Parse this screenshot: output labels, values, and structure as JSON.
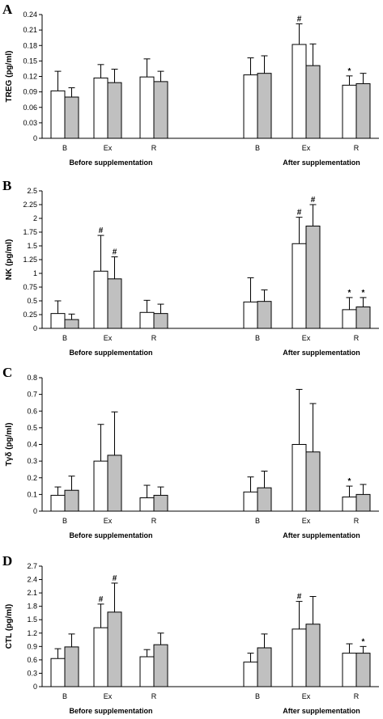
{
  "colors": {
    "series_a": "#ffffff",
    "series_b": "#c0c0c0",
    "axis": "#000000"
  },
  "chart_data": [
    {
      "panel": "A",
      "type": "bar",
      "ylabel": "TREG (pg/ml)",
      "ylim": [
        0,
        0.24
      ],
      "yticks": [
        "0",
        "0.03",
        "0.06",
        "0.09",
        "0.12",
        "0.15",
        "0.18",
        "0.21",
        "0.24"
      ],
      "categories": [
        "B",
        "Ex",
        "R",
        "B",
        "Ex",
        "R"
      ],
      "groups": [
        "Before supplementation",
        "After supplementation"
      ],
      "series": [
        {
          "values": [
            0.092,
            0.117,
            0.119,
            0.123,
            0.182,
            0.103
          ],
          "errors": [
            0.038,
            0.026,
            0.035,
            0.033,
            0.04,
            0.018
          ],
          "marks": [
            "",
            "",
            "",
            "",
            "#",
            "*"
          ]
        },
        {
          "values": [
            0.08,
            0.108,
            0.11,
            0.126,
            0.141,
            0.106
          ],
          "errors": [
            0.018,
            0.026,
            0.02,
            0.034,
            0.042,
            0.02
          ],
          "marks": [
            "",
            "",
            "",
            "",
            "",
            ""
          ]
        }
      ]
    },
    {
      "panel": "B",
      "type": "bar",
      "ylabel": "NK (pg/ml)",
      "ylim": [
        0,
        2.5
      ],
      "yticks": [
        "0",
        "0.25",
        "0.5",
        "0.75",
        "1",
        "1.25",
        "1.5",
        "1.75",
        "2",
        "2.25",
        "2.5"
      ],
      "categories": [
        "B",
        "Ex",
        "R",
        "B",
        "Ex",
        "R"
      ],
      "groups": [
        "Before supplementation",
        "After supplementation"
      ],
      "series": [
        {
          "values": [
            0.27,
            1.04,
            0.29,
            0.48,
            1.54,
            0.34
          ],
          "errors": [
            0.23,
            0.65,
            0.22,
            0.44,
            0.48,
            0.22
          ],
          "marks": [
            "",
            "#",
            "",
            "",
            "#",
            "*"
          ]
        },
        {
          "values": [
            0.16,
            0.9,
            0.27,
            0.49,
            1.86,
            0.39
          ],
          "errors": [
            0.1,
            0.4,
            0.17,
            0.21,
            0.39,
            0.17
          ],
          "marks": [
            "",
            "#",
            "",
            "",
            "#",
            "*"
          ]
        }
      ]
    },
    {
      "panel": "C",
      "type": "bar",
      "ylabel": "Tγδ (pg/ml)",
      "ylim": [
        0,
        0.8
      ],
      "yticks": [
        "0",
        "0.1",
        "0.2",
        "0.3",
        "0.4",
        "0.5",
        "0.6",
        "0.7",
        "0.8"
      ],
      "categories": [
        "B",
        "Ex",
        "R",
        "B",
        "Ex",
        "R"
      ],
      "groups": [
        "Before supplementation",
        "After supplementation"
      ],
      "series": [
        {
          "values": [
            0.095,
            0.3,
            0.08,
            0.115,
            0.4,
            0.085
          ],
          "errors": [
            0.05,
            0.22,
            0.075,
            0.09,
            0.33,
            0.065
          ],
          "marks": [
            "",
            "",
            "",
            "",
            "",
            "*"
          ]
        },
        {
          "values": [
            0.125,
            0.335,
            0.095,
            0.14,
            0.355,
            0.1
          ],
          "errors": [
            0.085,
            0.26,
            0.05,
            0.1,
            0.29,
            0.06
          ],
          "marks": [
            "",
            "",
            "",
            "",
            "",
            ""
          ]
        }
      ]
    },
    {
      "panel": "D",
      "type": "bar",
      "ylabel": "CTL (pg/ml)",
      "ylim": [
        0,
        2.7
      ],
      "yticks": [
        "0",
        "0.3",
        "0.6",
        "0.9",
        "1.2",
        "1.5",
        "1.8",
        "2.1",
        "2.4",
        "2.7"
      ],
      "categories": [
        "B",
        "Ex",
        "R",
        "B",
        "Ex",
        "R"
      ],
      "groups": [
        "Before supplementation",
        "After supplementation"
      ],
      "series": [
        {
          "values": [
            0.63,
            1.32,
            0.67,
            0.55,
            1.29,
            0.75
          ],
          "errors": [
            0.22,
            0.53,
            0.16,
            0.2,
            0.62,
            0.21
          ],
          "marks": [
            "",
            "#",
            "",
            "",
            "#",
            ""
          ]
        },
        {
          "values": [
            0.89,
            1.67,
            0.94,
            0.87,
            1.4,
            0.75
          ],
          "errors": [
            0.29,
            0.65,
            0.26,
            0.31,
            0.62,
            0.15
          ],
          "marks": [
            "",
            "#",
            "",
            "",
            "",
            "*"
          ]
        }
      ]
    }
  ]
}
